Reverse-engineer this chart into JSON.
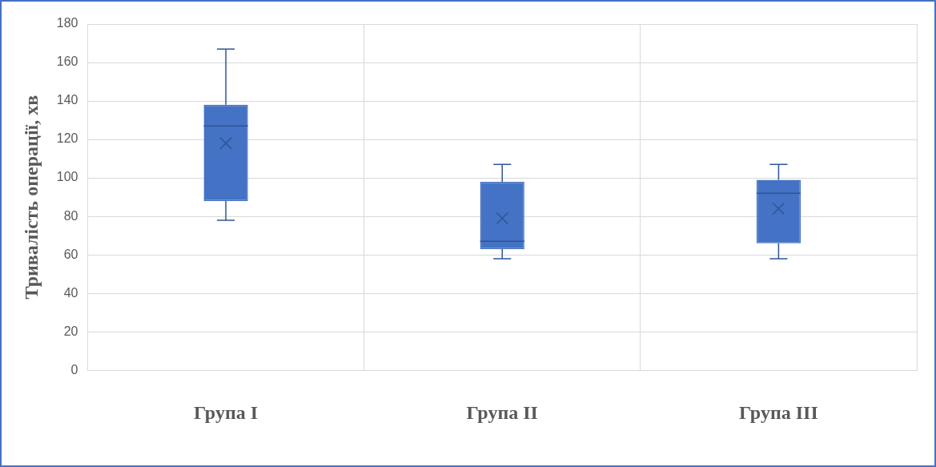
{
  "chart_data": {
    "type": "box",
    "ylabel": "Тривалість операції, хв",
    "categories": [
      "Група I",
      "Група II",
      "Група III"
    ],
    "boxes": [
      {
        "low": 78,
        "q1": 88,
        "median": 127,
        "q3": 138,
        "high": 167,
        "mean": 118
      },
      {
        "low": 58,
        "q1": 63,
        "median": 67,
        "q3": 98,
        "high": 107,
        "mean": 79
      },
      {
        "low": 58,
        "q1": 66,
        "median": 92,
        "q3": 99,
        "high": 107,
        "mean": 84
      }
    ],
    "color": "#4472c4",
    "ylim": [
      0,
      180
    ],
    "yticks": [
      0,
      20,
      40,
      60,
      80,
      100,
      120,
      140,
      160,
      180
    ],
    "grid": true,
    "legend": false
  }
}
